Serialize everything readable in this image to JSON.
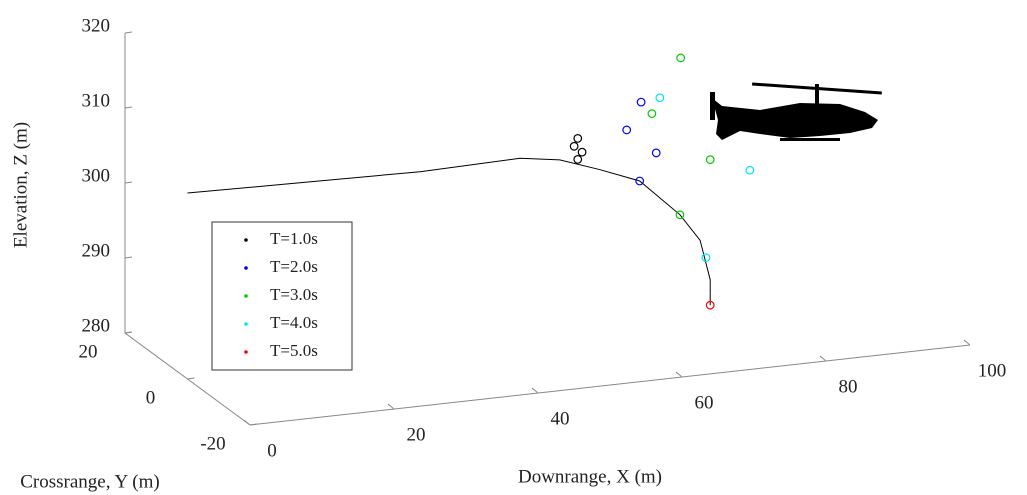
{
  "chart_data": {
    "type": "scatter3d",
    "xlabel": "Downrange, X (m)",
    "ylabel": "Crossrange, Y (m)",
    "zlabel": "Elevation, Z (m)",
    "xlim": [
      0,
      100
    ],
    "ylim": [
      -20,
      20
    ],
    "zlim": [
      280,
      320
    ],
    "xticks": [
      0,
      20,
      40,
      60,
      80,
      100
    ],
    "yticks": [
      -20,
      0,
      20
    ],
    "zticks": [
      280,
      290,
      300,
      310,
      320
    ],
    "legend": "lower left",
    "trajectory": {
      "color": "#000000",
      "x": [
        0,
        15.6,
        32.3,
        46.2,
        51.7,
        57.3,
        62.8,
        68.4,
        71.2,
        72.6,
        72.6
      ],
      "y": [
        0,
        0,
        0,
        0,
        0,
        0,
        0,
        0,
        0,
        0,
        0
      ],
      "z": [
        304.8,
        304.5,
        304.2,
        304.5,
        303.7,
        301.8,
        299.7,
        294.6,
        290.9,
        285.5,
        282.1
      ]
    },
    "series": [
      {
        "name": "T=1.0s",
        "color": "#000000",
        "x": [
          54.2,
          53.7,
          54.8,
          54.2
        ],
        "y": [
          0,
          0,
          0,
          0
        ],
        "z": [
          306.3,
          305.3,
          304.4,
          303.5
        ]
      },
      {
        "name": "T=2.0s",
        "color": "#0000ff",
        "x": [
          63.0,
          61.0,
          65.1,
          62.8
        ],
        "y": [
          0,
          0,
          0,
          0
        ],
        "z": [
          310.2,
          306.7,
          303.2,
          299.7
        ]
      },
      {
        "name": "T=3.0s",
        "color": "#00cc00",
        "x": [
          68.5,
          64.5,
          72.6,
          68.4
        ],
        "y": [
          0,
          0,
          0,
          0
        ],
        "z": [
          315.5,
          308.5,
          301.5,
          294.6
        ]
      },
      {
        "name": "T=4.0s",
        "color": "#00e5ff",
        "x": [
          65.6,
          78.1,
          72.0
        ],
        "y": [
          0,
          0,
          0
        ],
        "z": [
          310.5,
          299.5,
          288.5
        ]
      },
      {
        "name": "T=5.0s",
        "color": "#ff0000",
        "x": [
          72.6
        ],
        "y": [
          0
        ],
        "z": [
          282.1
        ]
      }
    ]
  }
}
